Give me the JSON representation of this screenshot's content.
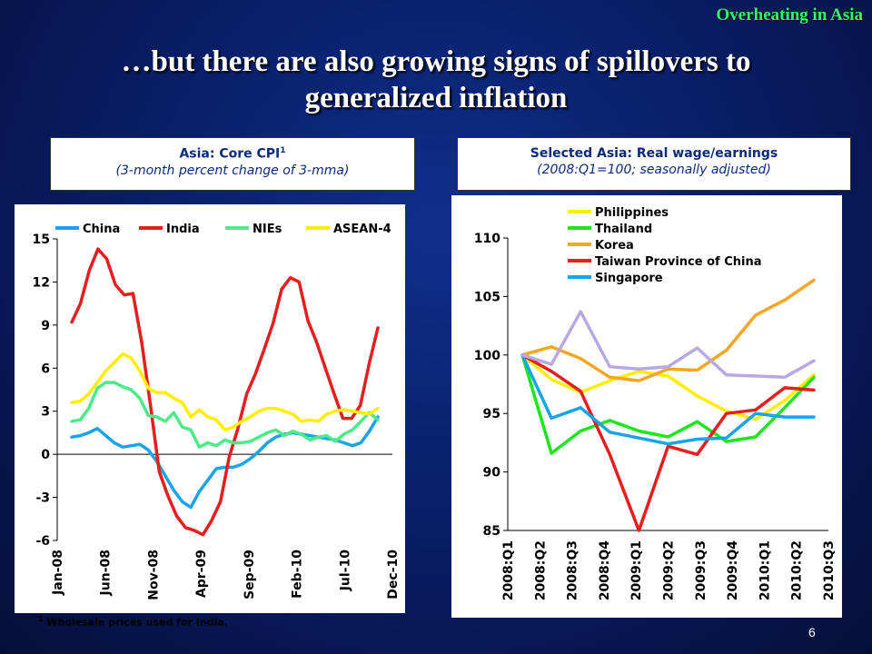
{
  "slide": {
    "corner_label": "Overheating in Asia",
    "title_line1": "…but there are also growing signs of spillovers to",
    "title_line2": "generalized inflation",
    "page_number": "6"
  },
  "left_box": {
    "title": "Asia: Core CPI",
    "title_sup": "1",
    "subtitle": "(3-month percent change of 3-mma)"
  },
  "right_box": {
    "title": "Selected Asia: Real wage/earnings",
    "subtitle": "(2008:Q1=100; seasonally adjusted)"
  },
  "footnote": {
    "sup": "1",
    "text": " Wholesale prices used for India."
  },
  "colors": {
    "background": "#0a1f6a",
    "accent_green": "#33ff66",
    "China": "#1aa3e8",
    "India": "#e51e1e",
    "NIEs": "#4dea8a",
    "ASEAN-4": "#ffee00",
    "Philippines": "#ffee00",
    "Thailand": "#1ee61e",
    "Korea": "#f5a623",
    "Taiwan Province of China": "#e51e1e",
    "Singapore": "#1aa3e8",
    "unlabeled": "#b8a9e3"
  },
  "chart_data": [
    {
      "type": "line",
      "ylim": [
        -6,
        15
      ],
      "yticks": [
        "15",
        "12",
        "9",
        "6",
        "3",
        "0",
        "-3",
        "-6"
      ],
      "xticks": [
        "Jan-08",
        "Jun-08",
        "Nov-08",
        "Apr-09",
        "Sep-09",
        "Feb-10",
        "Jul-10",
        "Dec-10"
      ],
      "legend_position": "top",
      "series": [
        {
          "name": "China",
          "color": "#1aa3e8",
          "values": [
            1.2,
            1.3,
            1.5,
            1.8,
            1.3,
            0.8,
            0.5,
            0.6,
            0.7,
            0.3,
            -0.5,
            -1.5,
            -2.5,
            -3.3,
            -3.7,
            -2.6,
            -1.8,
            -1.0,
            -0.9,
            -0.9,
            -0.7,
            -0.3,
            0.2,
            0.8,
            1.2,
            1.4,
            1.5,
            1.4,
            1.3,
            1.2,
            1.1,
            1.0,
            0.8,
            0.6,
            0.8,
            1.6,
            2.6
          ]
        },
        {
          "name": "India",
          "color": "#e51e1e",
          "values": [
            9.2,
            10.5,
            12.8,
            14.3,
            13.6,
            11.8,
            11.1,
            11.2,
            7.8,
            3.4,
            -1.2,
            -2.9,
            -4.3,
            -5.1,
            -5.3,
            -5.6,
            -4.6,
            -3.3,
            -0.2,
            1.8,
            4.2,
            5.6,
            7.3,
            9.1,
            11.5,
            12.3,
            12.0,
            9.3,
            7.8,
            6.0,
            4.2,
            2.5,
            2.5,
            3.4,
            6.3,
            8.8
          ]
        },
        {
          "name": "NIEs",
          "color": "#4dea8a",
          "values": [
            2.3,
            2.4,
            3.2,
            4.6,
            5.0,
            5.0,
            4.7,
            4.5,
            3.9,
            2.7,
            2.6,
            2.3,
            2.9,
            1.9,
            1.7,
            0.5,
            0.8,
            0.6,
            1.0,
            0.8,
            0.8,
            0.9,
            1.2,
            1.5,
            1.7,
            1.3,
            1.6,
            1.4,
            1.0,
            1.2,
            1.3,
            0.9,
            1.4,
            1.7,
            2.3,
            2.9,
            2.4
          ]
        },
        {
          "name": "ASEAN-4",
          "color": "#ffee00",
          "values": [
            3.6,
            3.7,
            4.2,
            5.0,
            5.8,
            6.4,
            7.0,
            6.7,
            5.8,
            4.6,
            4.3,
            4.3,
            3.9,
            3.6,
            2.6,
            3.1,
            2.6,
            2.4,
            1.7,
            1.9,
            2.3,
            2.6,
            3.0,
            3.2,
            3.2,
            3.0,
            2.8,
            2.3,
            2.4,
            2.3,
            2.8,
            3.0,
            3.1,
            3.0,
            2.9,
            2.8,
            3.2
          ]
        }
      ]
    },
    {
      "type": "line",
      "ylim": [
        85,
        110
      ],
      "yticks": [
        "110",
        "105",
        "100",
        "95",
        "90",
        "85"
      ],
      "xticks": [
        "2008:Q1",
        "2008:Q2",
        "2008:Q3",
        "2008:Q4",
        "2009:Q1",
        "2009:Q2",
        "2009:Q3",
        "2009:Q4",
        "2010:Q1",
        "2010:Q2",
        "2010:Q3"
      ],
      "legend_position": "top",
      "series": [
        {
          "name": "Philippines",
          "color": "#ffee00",
          "values": [
            100,
            97.9,
            96.8,
            97.8,
            98.6,
            98.2,
            96.5,
            95.2,
            94.5,
            96.1,
            98.3
          ]
        },
        {
          "name": "Thailand",
          "color": "#1ee61e",
          "values": [
            100,
            91.6,
            93.5,
            94.4,
            93.5,
            93.0,
            94.3,
            92.6,
            93.0,
            95.5,
            98.1
          ]
        },
        {
          "name": "Korea",
          "color": "#f5a623",
          "values": [
            100,
            100.7,
            99.7,
            98.1,
            97.8,
            98.8,
            98.7,
            100.4,
            103.4,
            104.7,
            106.4
          ]
        },
        {
          "name": "Taiwan Province of China",
          "color": "#e51e1e",
          "values": [
            100,
            98.6,
            96.9,
            91.5,
            85.0,
            92.2,
            91.5,
            95.0,
            95.3,
            97.2,
            97.0
          ]
        },
        {
          "name": "Singapore",
          "color": "#1aa3e8",
          "values": [
            100,
            94.6,
            95.5,
            93.4,
            92.9,
            92.4,
            92.8,
            92.9,
            95.0,
            94.7,
            94.7
          ]
        },
        {
          "color": "#b8a9e3",
          "values": [
            100,
            99.2,
            103.7,
            99.0,
            98.8,
            99.0,
            100.6,
            98.3,
            98.2,
            98.1,
            99.5
          ]
        }
      ]
    }
  ]
}
